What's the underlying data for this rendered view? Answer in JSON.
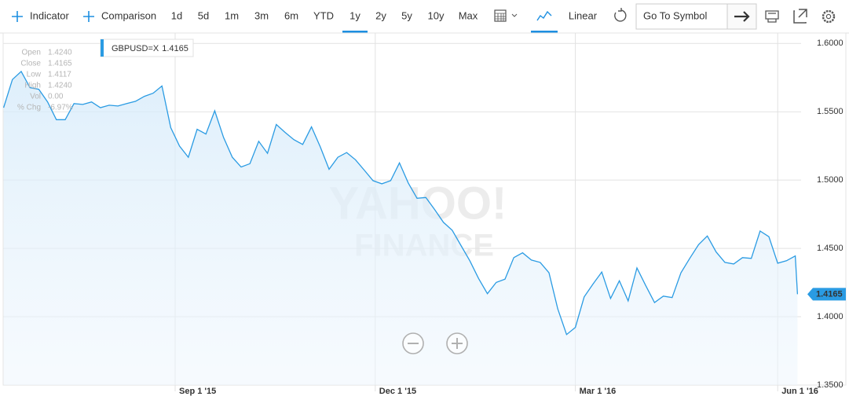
{
  "toolbar": {
    "items": [
      "Indicator",
      "Comparison",
      "1d",
      "5d",
      "1m",
      "3m",
      "6m",
      "YTD",
      "1y",
      "2y",
      "5y",
      "10y",
      "Max",
      "Linear"
    ],
    "active": "1y",
    "search_placeholder": "Go To Symbol"
  },
  "ohlc_panel": {
    "labels": [
      "Open",
      "Close",
      "Low",
      "High",
      "Vol",
      "% Chg"
    ],
    "values": [
      "1.4240",
      "1.4165",
      "1.4117",
      "1.4240",
      "0.00",
      "-6.97%"
    ]
  },
  "watermark": [
    "YAHOO!",
    "FINANCE"
  ],
  "chart_data": {
    "type": "line",
    "x": [
      "2015-06-15",
      "2015-06-19",
      "2015-06-23",
      "2015-06-27",
      "2015-07-01",
      "2015-07-05",
      "2015-07-09",
      "2015-07-13",
      "2015-07-17",
      "2015-07-21",
      "2015-07-25",
      "2015-07-29",
      "2015-08-02",
      "2015-08-06",
      "2015-08-10",
      "2015-08-14",
      "2015-08-18",
      "2015-08-22",
      "2015-08-26",
      "2015-08-30",
      "2015-09-03",
      "2015-09-07",
      "2015-09-11",
      "2015-09-15",
      "2015-09-19",
      "2015-09-23",
      "2015-09-27",
      "2015-10-01",
      "2015-10-05",
      "2015-10-09",
      "2015-10-13",
      "2015-10-17",
      "2015-10-21",
      "2015-10-25",
      "2015-10-29",
      "2015-11-02",
      "2015-11-06",
      "2015-11-10",
      "2015-11-14",
      "2015-11-18",
      "2015-11-22",
      "2015-11-26",
      "2015-11-30",
      "2015-12-04",
      "2015-12-08",
      "2015-12-12",
      "2015-12-16",
      "2015-12-20",
      "2015-12-24",
      "2015-12-28",
      "2016-01-01",
      "2016-01-05",
      "2016-01-09",
      "2016-01-13",
      "2016-01-17",
      "2016-01-21",
      "2016-01-25",
      "2016-01-29",
      "2016-02-02",
      "2016-02-06",
      "2016-02-10",
      "2016-02-14",
      "2016-02-18",
      "2016-02-22",
      "2016-02-26",
      "2016-03-01",
      "2016-03-05",
      "2016-03-09",
      "2016-03-13",
      "2016-03-17",
      "2016-03-21",
      "2016-03-25",
      "2016-03-29",
      "2016-04-02",
      "2016-04-06",
      "2016-04-10",
      "2016-04-14",
      "2016-04-18",
      "2016-04-22",
      "2016-04-26",
      "2016-04-30",
      "2016-05-04",
      "2016-05-08",
      "2016-05-12",
      "2016-05-16",
      "2016-05-20",
      "2016-05-24",
      "2016-05-28",
      "2016-06-01",
      "2016-06-05",
      "2016-06-09",
      "2016-06-10"
    ],
    "series": [
      {
        "name": "GBPUSD=X",
        "color": "#2a9be3",
        "values": [
          1.553,
          1.5736,
          1.5795,
          1.5677,
          1.5665,
          1.5572,
          1.5442,
          1.5442,
          1.556,
          1.5554,
          1.5572,
          1.553,
          1.5548,
          1.5542,
          1.556,
          1.5577,
          1.5613,
          1.5636,
          1.5689,
          1.5384,
          1.5249,
          1.5167,
          1.5372,
          1.5337,
          1.5507,
          1.5313,
          1.5167,
          1.5096,
          1.512,
          1.5284,
          1.5196,
          1.5407,
          1.5349,
          1.5296,
          1.5261,
          1.539,
          1.5243,
          1.5079,
          1.5167,
          1.5202,
          1.5149,
          1.5073,
          1.4996,
          1.4973,
          1.4996,
          1.5126,
          1.4979,
          1.4867,
          1.4873,
          1.4785,
          1.4691,
          1.4633,
          1.4521,
          1.441,
          1.428,
          1.4169,
          1.4251,
          1.4275,
          1.4433,
          1.4468,
          1.4415,
          1.4398,
          1.4322,
          1.4057,
          1.387,
          1.3922,
          1.4145,
          1.4239,
          1.4327,
          1.4134,
          1.4263,
          1.4116,
          1.4357,
          1.4228,
          1.4104,
          1.4151,
          1.414,
          1.4322,
          1.4427,
          1.4527,
          1.4591,
          1.4474,
          1.4398,
          1.4386,
          1.4433,
          1.4427,
          1.4627,
          1.4586,
          1.4392,
          1.441,
          1.4445,
          1.4165
        ]
      }
    ],
    "xlim": [
      "2015-06-15",
      "2016-06-11"
    ],
    "xticks": [
      {
        "value": "2015-09-01",
        "label": "Sep 1 '15"
      },
      {
        "value": "2015-12-01",
        "label": "Dec 1 '15"
      },
      {
        "value": "2016-03-01",
        "label": "Mar 1 '16"
      },
      {
        "value": "2016-06-01",
        "label": "Jun 1 '16"
      }
    ],
    "ylim": [
      1.35,
      1.6065
    ],
    "yticks": [
      {
        "value": 1.6,
        "label": "1.6000"
      },
      {
        "value": 1.55,
        "label": "1.5500"
      },
      {
        "value": 1.5,
        "label": "1.5000"
      },
      {
        "value": 1.45,
        "label": "1.4500"
      },
      {
        "value": 1.4,
        "label": "1.4000"
      },
      {
        "value": 1.35,
        "label": "1.3500"
      }
    ],
    "grid": true
  }
}
